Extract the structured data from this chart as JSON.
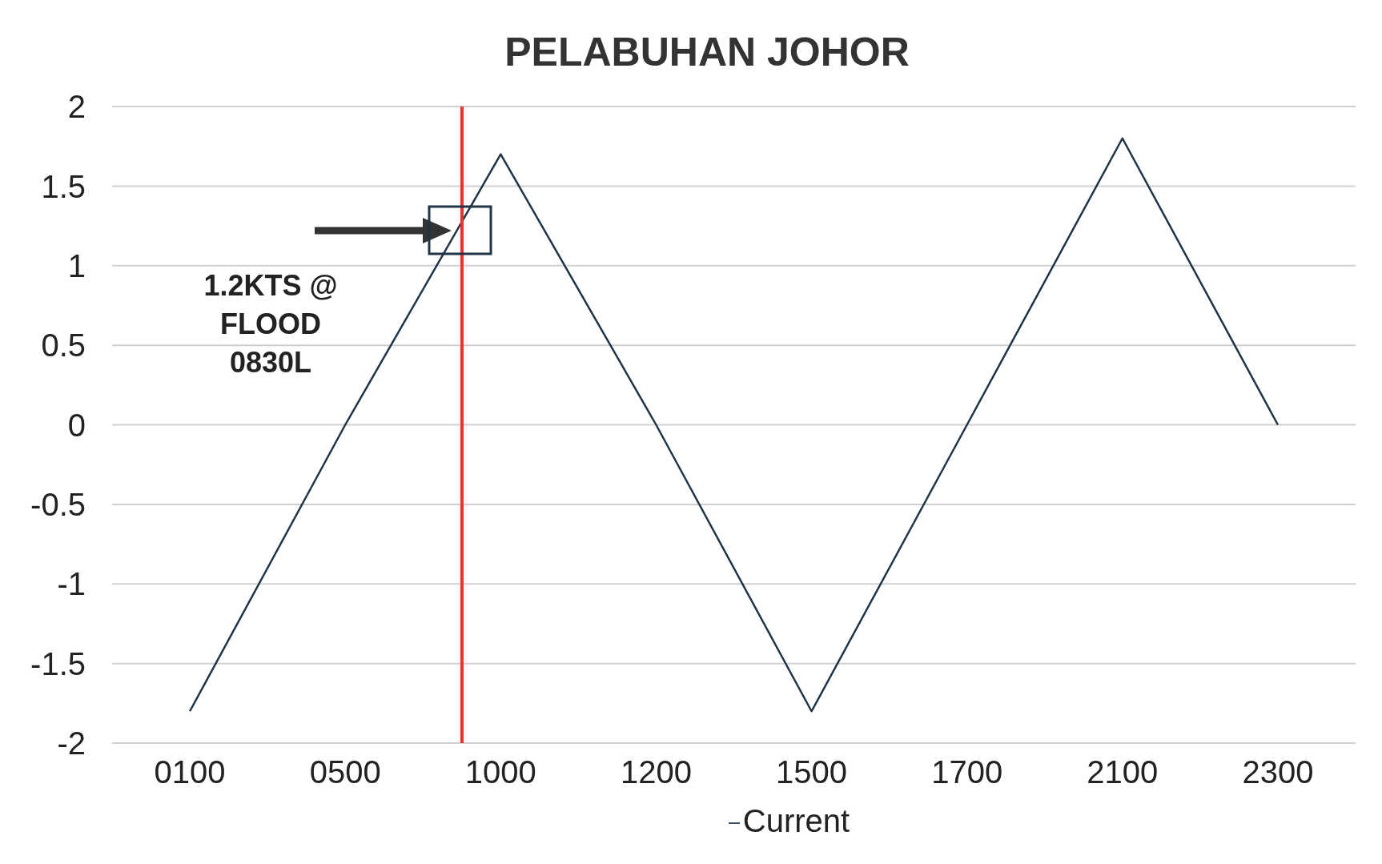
{
  "chart_data": {
    "type": "line",
    "title": "PELABUHAN JOHOR",
    "categories": [
      "0100",
      "0500",
      "1000",
      "1200",
      "1500",
      "1700",
      "2100",
      "2300"
    ],
    "series": [
      {
        "name": "Current",
        "color": "#1f3447",
        "values": [
          -1.8,
          0,
          1.7,
          0,
          -1.8,
          0,
          1.8,
          0
        ]
      }
    ],
    "ylim": [
      -2,
      2
    ],
    "yticks": [
      -2,
      -1.5,
      -1,
      -0.5,
      0,
      0.5,
      1,
      1.5,
      2
    ],
    "grid": "y",
    "legend": "bottom",
    "marker": "none",
    "line_style": "solid",
    "annotations": [
      "1.2KTS @ FLOOD 0830L"
    ]
  }
}
